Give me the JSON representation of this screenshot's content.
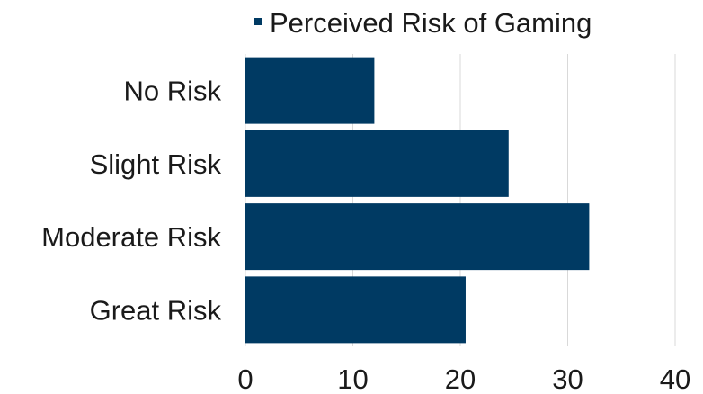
{
  "chart_data": {
    "type": "bar",
    "orientation": "horizontal",
    "categories": [
      "No Risk",
      "Slight Risk",
      "Moderate Risk",
      "Great Risk"
    ],
    "series": [
      {
        "name": "Perceived Risk of Gaming",
        "values": [
          12,
          24.5,
          32,
          20.5
        ],
        "color": "#003a63"
      }
    ],
    "xlim": [
      0,
      40
    ],
    "xticks": [
      0,
      10,
      20,
      30,
      40
    ],
    "grid": "vertical",
    "legend_position": "top",
    "title": "",
    "xlabel": "",
    "ylabel": ""
  }
}
